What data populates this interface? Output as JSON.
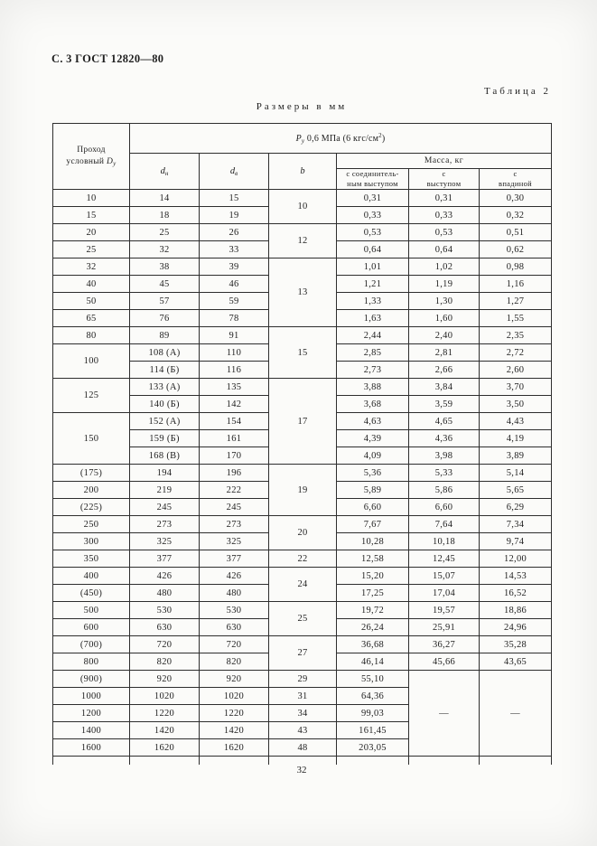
{
  "page": {
    "header": "С. 3 ГОСТ 12820—80",
    "table_caption": "Таблица 2",
    "units_caption": "Размеры в мм",
    "page_number": "32"
  },
  "table": {
    "header": {
      "pass_line1": "Проход",
      "pass_line2": "условный",
      "pass_symbol": "D",
      "pass_sub": "у",
      "pressure_symbol": "P",
      "pressure_sub": "у",
      "pressure_text": " 0,6 МПа (6 кгс/см",
      "pressure_sup": "2",
      "pressure_close": ")",
      "dn_base": "d",
      "dn_sub": "н",
      "dv_base": "d",
      "dv_sub": "в",
      "b_label": "b",
      "mass_label": "Масса, кг",
      "mass_col1": "с соединитель-\nным выступом",
      "mass_col2": "с\nвыступом",
      "mass_col3": "с\nвпадиной"
    },
    "rows": [
      {
        "dy": "10",
        "dn": "14",
        "dv": "15",
        "b": "10",
        "b_span": 2,
        "m1": "0,31",
        "m2": "0,31",
        "m3": "0,30"
      },
      {
        "dy": "15",
        "dn": "18",
        "dv": "19",
        "b": null,
        "m1": "0,33",
        "m2": "0,33",
        "m3": "0,32"
      },
      {
        "dy": "20",
        "dn": "25",
        "dv": "26",
        "b": "12",
        "b_span": 2,
        "m1": "0,53",
        "m2": "0,53",
        "m3": "0,51"
      },
      {
        "dy": "25",
        "dn": "32",
        "dv": "33",
        "b": null,
        "m1": "0,64",
        "m2": "0,64",
        "m3": "0,62"
      },
      {
        "dy": "32",
        "dn": "38",
        "dv": "39",
        "b": "13",
        "b_span": 4,
        "m1": "1,01",
        "m2": "1,02",
        "m3": "0,98"
      },
      {
        "dy": "40",
        "dn": "45",
        "dv": "46",
        "b": null,
        "m1": "1,21",
        "m2": "1,19",
        "m3": "1,16"
      },
      {
        "dy": "50",
        "dn": "57",
        "dv": "59",
        "b": null,
        "m1": "1,33",
        "m2": "1,30",
        "m3": "1,27"
      },
      {
        "dy": "65",
        "dn": "76",
        "dv": "78",
        "b": null,
        "m1": "1,63",
        "m2": "1,60",
        "m3": "1,55"
      },
      {
        "dy": "80",
        "dn": "89",
        "dv": "91",
        "b": "15",
        "b_span": 3,
        "m1": "2,44",
        "m2": "2,40",
        "m3": "2,35"
      },
      {
        "dy": "100",
        "dy_span": 2,
        "dn": "108 (А)",
        "dv": "110",
        "b": null,
        "m1": "2,85",
        "m2": "2,81",
        "m3": "2,72"
      },
      {
        "dy": null,
        "dn": "114 (Б)",
        "dv": "116",
        "b": null,
        "m1": "2,73",
        "m2": "2,66",
        "m3": "2,60"
      },
      {
        "dy": "125",
        "dy_span": 2,
        "dn": "133 (А)",
        "dv": "135",
        "b": "17",
        "b_span": 5,
        "m1": "3,88",
        "m2": "3,84",
        "m3": "3,70"
      },
      {
        "dy": null,
        "dn": "140 (Б)",
        "dv": "142",
        "b": null,
        "m1": "3,68",
        "m2": "3,59",
        "m3": "3,50"
      },
      {
        "dy": "150",
        "dy_span": 3,
        "dn": "152 (А)",
        "dv": "154",
        "b": null,
        "m1": "4,63",
        "m2": "4,65",
        "m3": "4,43"
      },
      {
        "dy": null,
        "dn": "159 (Б)",
        "dv": "161",
        "b": null,
        "m1": "4,39",
        "m2": "4,36",
        "m3": "4,19"
      },
      {
        "dy": null,
        "dn": "168 (В)",
        "dv": "170",
        "b": null,
        "m1": "4,09",
        "m2": "3,98",
        "m3": "3,89"
      },
      {
        "dy": "(175)",
        "dn": "194",
        "dv": "196",
        "b": "19",
        "b_span": 3,
        "m1": "5,36",
        "m2": "5,33",
        "m3": "5,14"
      },
      {
        "dy": "200",
        "dn": "219",
        "dv": "222",
        "b": null,
        "m1": "5,89",
        "m2": "5,86",
        "m3": "5,65"
      },
      {
        "dy": "(225)",
        "dn": "245",
        "dv": "245",
        "b": null,
        "m1": "6,60",
        "m2": "6,60",
        "m3": "6,29"
      },
      {
        "dy": "250",
        "dn": "273",
        "dv": "273",
        "b": "20",
        "b_span": 2,
        "m1": "7,67",
        "m2": "7,64",
        "m3": "7,34"
      },
      {
        "dy": "300",
        "dn": "325",
        "dv": "325",
        "b": null,
        "m1": "10,28",
        "m2": "10,18",
        "m3": "9,74"
      },
      {
        "dy": "350",
        "dn": "377",
        "dv": "377",
        "b": "22",
        "m1": "12,58",
        "m2": "12,45",
        "m3": "12,00"
      },
      {
        "dy": "400",
        "dn": "426",
        "dv": "426",
        "b": "24",
        "b_span": 2,
        "m1": "15,20",
        "m2": "15,07",
        "m3": "14,53"
      },
      {
        "dy": "(450)",
        "dn": "480",
        "dv": "480",
        "b": null,
        "m1": "17,25",
        "m2": "17,04",
        "m3": "16,52"
      },
      {
        "dy": "500",
        "dn": "530",
        "dv": "530",
        "b": "25",
        "b_span": 2,
        "m1": "19,72",
        "m2": "19,57",
        "m3": "18,86"
      },
      {
        "dy": "600",
        "dn": "630",
        "dv": "630",
        "b": null,
        "m1": "26,24",
        "m2": "25,91",
        "m3": "24,96"
      },
      {
        "dy": "(700)",
        "dn": "720",
        "dv": "720",
        "b": "27",
        "b_span": 2,
        "m1": "36,68",
        "m2": "36,27",
        "m3": "35,28"
      },
      {
        "dy": "800",
        "dn": "820",
        "dv": "820",
        "b": null,
        "m1": "46,14",
        "m2": "45,66",
        "m3": "43,65"
      },
      {
        "dy": "(900)",
        "dn": "920",
        "dv": "920",
        "b": "29",
        "m1": "55,10",
        "m2": "—",
        "m2_span": 5,
        "m3": "—",
        "m3_span": 5
      },
      {
        "dy": "1000",
        "dn": "1020",
        "dv": "1020",
        "b": "31",
        "m1": "64,36",
        "m2": null,
        "m3": null
      },
      {
        "dy": "1200",
        "dn": "1220",
        "dv": "1220",
        "b": "34",
        "m1": "99,03",
        "m2": null,
        "m3": null
      },
      {
        "dy": "1400",
        "dn": "1420",
        "dv": "1420",
        "b": "43",
        "m1": "161,45",
        "m2": null,
        "m3": null
      },
      {
        "dy": "1600",
        "dn": "1620",
        "dv": "1620",
        "b": "48",
        "m1": "203,05",
        "m2": null,
        "m3": null
      }
    ]
  }
}
